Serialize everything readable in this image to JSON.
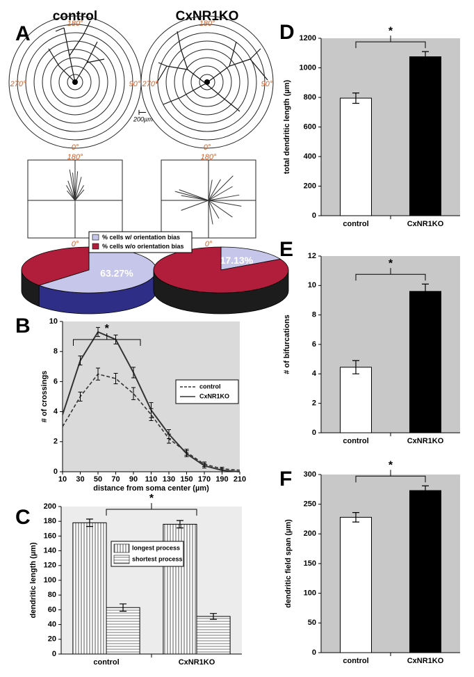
{
  "panel_a": {
    "label": "A",
    "angle_labels": {
      "top": "180°",
      "left": "270°",
      "right": "90°",
      "bottom": "0°"
    },
    "scale_bar": "200µm"
  },
  "chart_data": [
    {
      "type": "pie",
      "panel": "A",
      "categories": [
        "% cells w/ orientation bias",
        "% cells w/o orientation bias"
      ],
      "colors": [
        "#c6c6ea",
        "#b01e3c"
      ],
      "side_colors": [
        "#2e2e86",
        "#1c1c1c"
      ],
      "series": [
        {
          "name": "control",
          "values": [
            63.27,
            36.73
          ],
          "value_labels": [
            "63.27%",
            null
          ]
        },
        {
          "name": "CxNR1KO",
          "values": [
            17.13,
            82.87
          ],
          "value_labels": [
            "17.13%",
            null
          ]
        }
      ]
    },
    {
      "type": "line",
      "panel": "B",
      "x": [
        10,
        30,
        50,
        70,
        90,
        110,
        130,
        150,
        170,
        190,
        210
      ],
      "xlim": [
        10,
        210
      ],
      "xticks": [
        10,
        30,
        50,
        70,
        90,
        110,
        130,
        150,
        170,
        190,
        210
      ],
      "ylim": [
        0,
        10
      ],
      "yticks": [
        0,
        2,
        4,
        6,
        8,
        10
      ],
      "xlabel": "distance from soma center (µm)",
      "ylabel": "# of crossings",
      "annotation": "*",
      "legend": "right",
      "background": "#dadada",
      "series": [
        {
          "name": "control",
          "color": "#333333",
          "dash": true,
          "values": [
            3.0,
            5.0,
            6.5,
            6.2,
            5.2,
            3.8,
            2.2,
            1.3,
            0.5,
            0.2,
            0.1
          ],
          "errors": [
            null,
            0.3,
            0.4,
            0.35,
            0.4,
            0.4,
            0.3,
            0.2,
            0.15,
            0.1,
            null
          ]
        },
        {
          "name": "CxNR1KO",
          "color": "#333333",
          "dash": false,
          "values": [
            3.8,
            7.4,
            9.3,
            8.8,
            6.6,
            4.1,
            2.5,
            1.2,
            0.4,
            0.1,
            0.0
          ],
          "errors": [
            null,
            0.3,
            0.3,
            0.3,
            0.35,
            0.5,
            0.3,
            0.2,
            0.15,
            0.1,
            null
          ]
        }
      ]
    },
    {
      "type": "bar",
      "panel": "C",
      "categories": [
        "control",
        "CxNR1KO"
      ],
      "ylim": [
        0,
        200
      ],
      "yticks": [
        0,
        20,
        40,
        60,
        80,
        100,
        120,
        140,
        160,
        180,
        200
      ],
      "ylabel": "dendritic length (µm)",
      "annotation": "*",
      "background": "#ececec",
      "series": [
        {
          "name": "longest process",
          "pattern": "vertical",
          "values": [
            178,
            176
          ],
          "errors": [
            5,
            5
          ]
        },
        {
          "name": "shortest process",
          "pattern": "horizontal",
          "values": [
            63,
            51
          ],
          "errors": [
            5,
            4
          ]
        }
      ]
    },
    {
      "type": "bar",
      "panel": "D",
      "categories": [
        "control",
        "CxNR1KO"
      ],
      "values": [
        795,
        1075
      ],
      "errors": [
        35,
        35
      ],
      "colors": [
        "#ffffff",
        "#000000"
      ],
      "ylim": [
        0,
        1200
      ],
      "yticks": [
        0,
        200,
        400,
        600,
        800,
        1000,
        1200
      ],
      "ylabel": "total dendritic length (µm)",
      "annotation": "*",
      "background": "#c8c8c8"
    },
    {
      "type": "bar",
      "panel": "E",
      "categories": [
        "control",
        "CxNR1KO"
      ],
      "values": [
        4.45,
        9.6
      ],
      "errors": [
        0.45,
        0.5
      ],
      "colors": [
        "#ffffff",
        "#000000"
      ],
      "ylim": [
        0,
        12
      ],
      "yticks": [
        0,
        2,
        4,
        6,
        8,
        10,
        12
      ],
      "ylabel": "# of bifurcations",
      "annotation": "*",
      "background": "#c8c8c8"
    },
    {
      "type": "bar",
      "panel": "F",
      "categories": [
        "control",
        "CxNR1KO"
      ],
      "values": [
        228,
        273
      ],
      "errors": [
        8,
        8
      ],
      "colors": [
        "#ffffff",
        "#000000"
      ],
      "ylim": [
        0,
        300
      ],
      "yticks": [
        0,
        50,
        100,
        150,
        200,
        250,
        300
      ],
      "ylabel": "dendritic field span (µm)",
      "annotation": "*",
      "background": "#c8c8c8"
    }
  ]
}
